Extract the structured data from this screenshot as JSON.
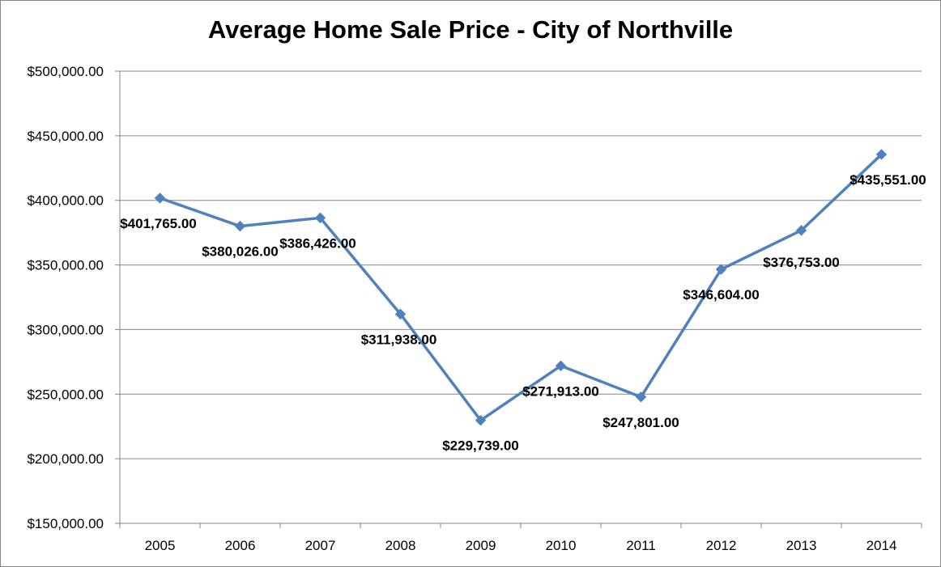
{
  "chart_data": {
    "type": "line",
    "title": "Average Home Sale Price - City of Northville",
    "xlabel": "",
    "ylabel": "",
    "categories": [
      "2005",
      "2006",
      "2007",
      "2008",
      "2009",
      "2010",
      "2011",
      "2012",
      "2013",
      "2014"
    ],
    "series": [
      {
        "values": [
          401765,
          380026,
          386426,
          311938,
          229739,
          271913,
          247801,
          346604,
          376753,
          435551
        ],
        "data_labels": [
          "$401,765.00",
          "$380,026.00",
          "$386,426.00",
          "$311,938.00",
          "$229,739.00",
          "$271,913.00",
          "$247,801.00",
          "$346,604.00",
          "$376,753.00",
          "$435,551.00"
        ],
        "color": "#4f81bd",
        "marker": "diamond"
      }
    ],
    "ylim": [
      150000,
      500000
    ],
    "yticks": [
      150000,
      200000,
      250000,
      300000,
      350000,
      400000,
      450000,
      500000
    ],
    "ytick_labels": [
      "$150,000.00",
      "$200,000.00",
      "$250,000.00",
      "$300,000.00",
      "$350,000.00",
      "$400,000.00",
      "$450,000.00",
      "$500,000.00"
    ],
    "grid": true,
    "legend": "none",
    "colors": {
      "line": "#4f81bd",
      "grid": "#868686",
      "axis": "#868686",
      "text": "#000000"
    }
  }
}
